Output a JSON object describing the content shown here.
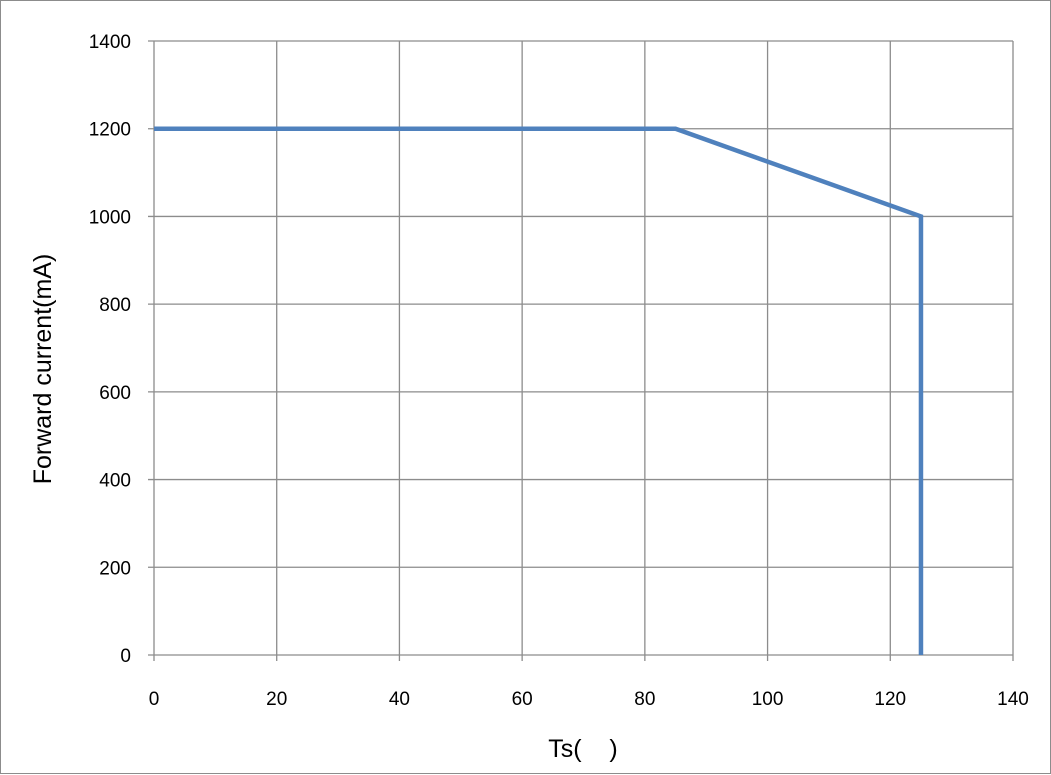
{
  "chart_data": {
    "type": "line",
    "title": "",
    "xlabel": "Ts(    )",
    "ylabel": "Forward current(mA)",
    "xlim": [
      0,
      140
    ],
    "ylim": [
      0,
      1400
    ],
    "x_ticks": [
      "0",
      "20",
      "40",
      "60",
      "80",
      "100",
      "120",
      "140"
    ],
    "y_ticks": [
      "0",
      "200",
      "400",
      "600",
      "800",
      "1000",
      "1200",
      "1400"
    ],
    "grid": true,
    "legend": "none",
    "series": [
      {
        "x": [
          0,
          85,
          125,
          125
        ],
        "y": [
          1200,
          1200,
          1000,
          0
        ],
        "color": "#4f81bd"
      }
    ]
  },
  "colors": {
    "grid": "#8c8c8c",
    "line": "#4f81bd",
    "frame": "#8c8c8c"
  }
}
